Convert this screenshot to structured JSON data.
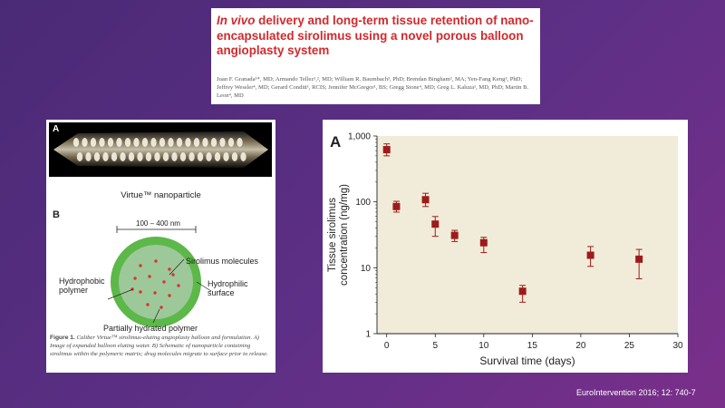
{
  "article": {
    "title_italic": "In vivo",
    "title_rest": " delivery and long-term tissue retention of nano-encapsulated sirolimus using a novel porous balloon angioplasty system",
    "authors": "Juan F. Granada¹*, MD; Armando Tellez¹,², MD; William R. Baumbach³, PhD; Brendan Bingham³, MA; Yen-Fang Keng³, PhD; Jeffrey Wessler⁴, MD; Gerard Conditt¹, RCIS; Jennifer McGregor¹, BS; Gregg Stone⁴, MD; Greg L. Kaluza¹, MD, PhD; Martin B. Leon⁴, MD"
  },
  "figure_left": {
    "panel_a": "A",
    "particle_label": "Virtue™ nanoparticle",
    "panel_b": "B",
    "size_label": "100 – 400 nm",
    "labels": {
      "sirolimus": "Sirolimus molecules",
      "hydrophobic": "Hydrophobic polymer",
      "hydrophilic": "Hydrophilic surface",
      "hydrated": "Partially hydrated polymer"
    },
    "caption_title": "Figure 1.",
    "caption_text": " Caliber Virtue™ sirolimus-eluting angioplasty balloon and formulation. A) Image of expanded balloon eluting water. B) Schematic of nanoparticle containing sirolimus within the polymeric matrix; drug molecules migrate to surface prior to release."
  },
  "chart_data": {
    "type": "scatter",
    "panel_label": "A",
    "xlabel": "Survival time (days)",
    "ylabel": "Tissue sirolimus concentration (ng/mg)",
    "x_ticks": [
      "0",
      "5",
      "10",
      "15",
      "20",
      "25",
      "30"
    ],
    "y_ticks": [
      "1",
      "10",
      "100",
      "1,000"
    ],
    "xlim": [
      -1,
      30
    ],
    "ylim": [
      1,
      1000
    ],
    "y_scale": "log",
    "grid": false,
    "points": [
      {
        "x": 0,
        "y": 620,
        "lo": 500,
        "hi": 760
      },
      {
        "x": 1,
        "y": 85,
        "lo": 70,
        "hi": 102
      },
      {
        "x": 4,
        "y": 108,
        "lo": 85,
        "hi": 135
      },
      {
        "x": 5,
        "y": 46,
        "lo": 30,
        "hi": 60
      },
      {
        "x": 7,
        "y": 31,
        "lo": 25,
        "hi": 37
      },
      {
        "x": 10,
        "y": 24,
        "lo": 17,
        "hi": 29
      },
      {
        "x": 14,
        "y": 4.4,
        "lo": 3.0,
        "hi": 5.4
      },
      {
        "x": 21,
        "y": 15.5,
        "lo": 10.5,
        "hi": 21
      },
      {
        "x": 26,
        "y": 13.5,
        "lo": 6.8,
        "hi": 19
      }
    ],
    "colors": {
      "marker": "#9e1b1b",
      "plot_bg": "#f1ecd9"
    }
  },
  "citation": "EuroIntervention 2016; 12: 740-7"
}
